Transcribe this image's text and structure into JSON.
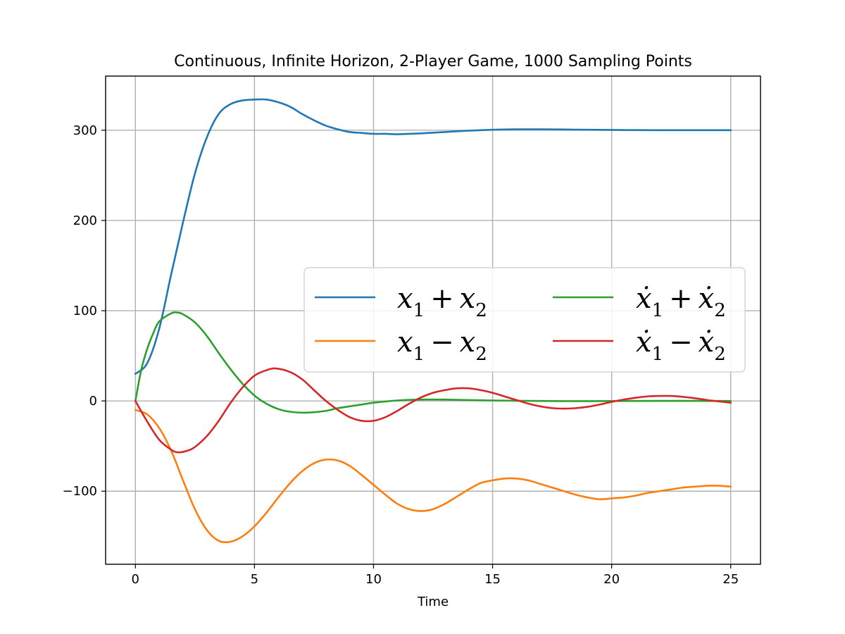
{
  "chart_data": {
    "type": "line",
    "title": "Continuous, Infinite Horizon, 2-Player Game, 1000 Sampling Points",
    "xlabel": "Time",
    "ylabel": "",
    "xlim": [
      -1.25,
      26.25
    ],
    "ylim": [
      -181,
      360
    ],
    "xticks": [
      0,
      5,
      10,
      15,
      20,
      25
    ],
    "yticks": [
      -100,
      0,
      100,
      200,
      300
    ],
    "xtick_labels": [
      "0",
      "5",
      "10",
      "15",
      "20",
      "25"
    ],
    "ytick_labels": [
      "−100",
      "0",
      "100",
      "200",
      "300"
    ],
    "grid": true,
    "legend_position": "center-right",
    "legend_columns": 2,
    "series": [
      {
        "name": "x1 + x2",
        "legend_main": "x",
        "legend_sub1": "1",
        "legend_op": "+",
        "legend_sub2": "2",
        "dotted": false,
        "color": "#1f77b4",
        "x": [
          0,
          0.5,
          1,
          1.5,
          2,
          2.5,
          3,
          3.5,
          4,
          4.5,
          5,
          5.5,
          6,
          6.5,
          7,
          7.5,
          8,
          8.5,
          9,
          9.5,
          10,
          10.5,
          11,
          11.5,
          12,
          13,
          14,
          15,
          16,
          17,
          18,
          19,
          20,
          21,
          22,
          23,
          24,
          25
        ],
        "y": [
          30,
          42,
          80,
          140,
          198,
          252,
          292,
          318,
          329,
          333,
          334,
          334,
          331,
          326,
          318,
          311,
          305,
          301,
          298,
          297,
          296,
          296,
          295.5,
          296,
          296.5,
          298,
          299.5,
          300.5,
          301,
          301,
          300.8,
          300.5,
          300.3,
          300.1,
          300,
          300,
          300,
          300
        ]
      },
      {
        "name": "x1 - x2",
        "legend_main": "x",
        "legend_sub1": "1",
        "legend_op": "−",
        "legend_sub2": "2",
        "dotted": false,
        "color": "#ff7f0e",
        "x": [
          0,
          0.5,
          1,
          1.5,
          2,
          2.5,
          3,
          3.5,
          4,
          4.5,
          5,
          5.5,
          6,
          6.5,
          7,
          7.5,
          8,
          8.5,
          9,
          9.5,
          10,
          10.5,
          11,
          11.5,
          12,
          12.5,
          13,
          13.5,
          14,
          14.5,
          15,
          15.5,
          16,
          16.5,
          17,
          17.5,
          18,
          18.5,
          19,
          19.5,
          20,
          20.5,
          21,
          21.5,
          22,
          22.5,
          23,
          23.5,
          24,
          24.5,
          25
        ],
        "y": [
          -10,
          -15,
          -30,
          -55,
          -88,
          -120,
          -143,
          -155,
          -156,
          -150,
          -139,
          -124,
          -107,
          -91,
          -78,
          -69,
          -65,
          -66,
          -72,
          -82,
          -93,
          -104,
          -114,
          -120,
          -122,
          -120,
          -114,
          -106,
          -98,
          -91,
          -88,
          -86,
          -86,
          -88,
          -92,
          -96,
          -100,
          -104,
          -107,
          -109,
          -108,
          -107,
          -105,
          -102,
          -100,
          -98,
          -96,
          -95,
          -94,
          -94,
          -95
        ]
      },
      {
        "name": "ẋ1 + ẋ2",
        "legend_main": "ẋ",
        "legend_sub1": "1",
        "legend_op": "+",
        "legend_sub2": "2",
        "dotted": true,
        "color": "#2ca02c",
        "x": [
          0,
          0.25,
          0.5,
          0.75,
          1,
          1.5,
          1.75,
          2,
          2.5,
          3,
          3.5,
          4,
          4.5,
          5,
          5.5,
          6,
          6.5,
          7,
          7.5,
          8,
          8.5,
          9,
          9.5,
          10,
          11,
          12,
          13,
          14,
          15,
          16,
          17,
          18,
          19,
          20,
          21,
          22,
          23,
          24,
          25
        ],
        "y": [
          0,
          35,
          58,
          75,
          88,
          97,
          98,
          96,
          87,
          72,
          53,
          35,
          19,
          6,
          -3,
          -9,
          -12,
          -13,
          -12.5,
          -11,
          -8,
          -6,
          -4,
          -2,
          0.5,
          1.5,
          1.5,
          1,
          0.5,
          0.2,
          0,
          -0.2,
          -0.2,
          -0.1,
          0,
          0.1,
          0.1,
          0,
          0
        ]
      },
      {
        "name": "ẋ1 - ẋ2",
        "legend_main": "ẋ",
        "legend_sub1": "1",
        "legend_op": "−",
        "legend_sub2": "2",
        "dotted": true,
        "color": "#d62728",
        "x": [
          0,
          0.5,
          1,
          1.5,
          1.8,
          2.2,
          2.5,
          3,
          3.5,
          4,
          4.5,
          5,
          5.5,
          5.9,
          6.5,
          7,
          7.5,
          8,
          8.5,
          9,
          9.5,
          10,
          10.5,
          11,
          11.5,
          12,
          12.5,
          13,
          13.5,
          14,
          14.5,
          15,
          15.5,
          16,
          16.5,
          17,
          17.5,
          18,
          18.5,
          19,
          19.5,
          20,
          20.5,
          21,
          21.5,
          22,
          22.5,
          23,
          23.5,
          24,
          24.5,
          25
        ],
        "y": [
          0,
          -23,
          -43,
          -54,
          -57,
          -55,
          -51,
          -39,
          -22,
          -2,
          15,
          28,
          34,
          36,
          32,
          24,
          12,
          0,
          -10,
          -18,
          -22,
          -22,
          -18,
          -11,
          -3,
          4,
          9,
          12,
          14,
          14,
          12,
          9,
          5,
          1,
          -3,
          -6,
          -8,
          -8.5,
          -8,
          -6.5,
          -4,
          -1,
          1.5,
          3.5,
          5,
          5.5,
          5.5,
          4.5,
          3,
          1,
          -0.5,
          -2
        ]
      }
    ]
  }
}
